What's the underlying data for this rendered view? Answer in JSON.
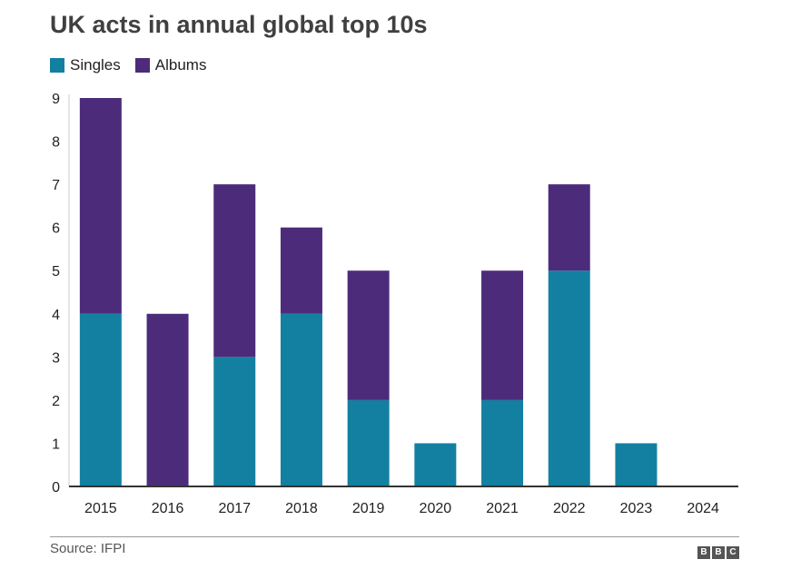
{
  "chart_data": {
    "type": "bar",
    "stacked": true,
    "title": "UK acts in annual global top 10s",
    "categories": [
      "2015",
      "2016",
      "2017",
      "2018",
      "2019",
      "2020",
      "2021",
      "2022",
      "2023",
      "2024"
    ],
    "series": [
      {
        "name": "Singles",
        "color": "#1380a1",
        "values": [
          4,
          0,
          3,
          4,
          2,
          1,
          2,
          5,
          1,
          0
        ]
      },
      {
        "name": "Albums",
        "color": "#4c2c7a",
        "values": [
          5,
          4,
          4,
          2,
          3,
          0,
          3,
          2,
          0,
          0
        ]
      }
    ],
    "ylim": [
      0,
      9
    ],
    "yticks": [
      0,
      1,
      2,
      3,
      4,
      5,
      6,
      7,
      8,
      9
    ],
    "xlabel": "",
    "ylabel": "",
    "grid": false,
    "legend_position": "top-left"
  },
  "footer": {
    "source": "Source: IFPI",
    "logo_letters": [
      "B",
      "B",
      "C"
    ]
  }
}
